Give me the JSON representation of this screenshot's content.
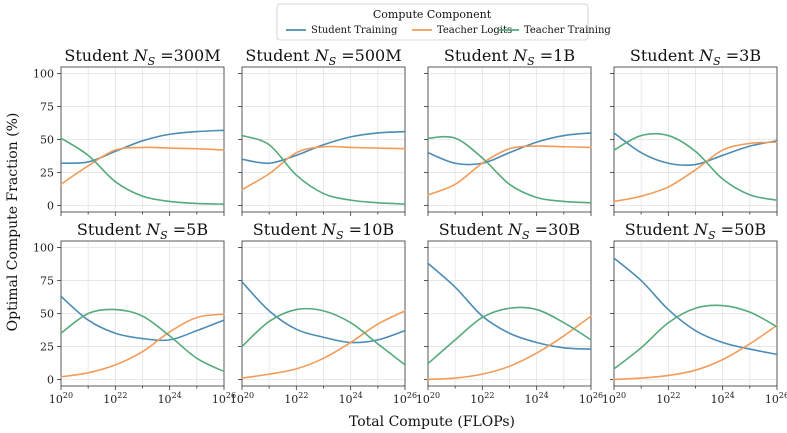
{
  "colors": {
    "student_training": "#4c8cb5",
    "teacher_logits": "#f39c5a",
    "teacher_training": "#55ab7b"
  },
  "chart_data": {
    "type": "line",
    "ylabel": "Optimal Compute Fraction (%)",
    "xlabel": "Total Compute (FLOPs)",
    "xscale": "log",
    "xlim_exponent": [
      20,
      26
    ],
    "ylim": [
      -5,
      105
    ],
    "yticks": [
      0,
      25,
      50,
      75,
      100
    ],
    "xtick_exponents": [
      20,
      22,
      24,
      26
    ],
    "xtick_base": "10",
    "legend": {
      "title": "Compute Component",
      "location": "top-center",
      "entries": [
        "Student Training",
        "Teacher Logits",
        "Teacher Training"
      ]
    },
    "panels": [
      {
        "title_prefix": "Student ",
        "title_var": "N",
        "title_sub": "S",
        "title_suffix": " =300M",
        "x_exponent": [
          20,
          21,
          22,
          23,
          24,
          25,
          26
        ],
        "series": [
          {
            "name": "Student Training",
            "values": [
              32,
              33,
              41,
              49,
              54,
              56,
              57
            ]
          },
          {
            "name": "Teacher Logits",
            "values": [
              16,
              30,
              42,
              44,
              43.5,
              43,
              42
            ]
          },
          {
            "name": "Teacher Training",
            "values": [
              51,
              38,
              18,
              7,
              3,
              1.5,
              1
            ]
          }
        ]
      },
      {
        "title_prefix": "Student ",
        "title_var": "N",
        "title_sub": "S",
        "title_suffix": " =500M",
        "x_exponent": [
          20,
          21,
          22,
          23,
          24,
          25,
          26
        ],
        "series": [
          {
            "name": "Student Training",
            "values": [
              35,
              32,
              38,
              46,
              52,
              55,
              56
            ]
          },
          {
            "name": "Teacher Logits",
            "values": [
              12,
              24,
              40,
              44.5,
              44,
              43.5,
              43
            ]
          },
          {
            "name": "Teacher Training",
            "values": [
              53,
              46,
              23,
              9,
              4,
              2,
              1
            ]
          }
        ]
      },
      {
        "title_prefix": "Student ",
        "title_var": "N",
        "title_sub": "S",
        "title_suffix": " =1B",
        "x_exponent": [
          20,
          21,
          22,
          23,
          24,
          25,
          26
        ],
        "series": [
          {
            "name": "Student Training",
            "values": [
              40,
              32,
              32,
              40,
              48,
              53,
              55
            ]
          },
          {
            "name": "Teacher Logits",
            "values": [
              8,
              16,
              32,
              43,
              45,
              44.5,
              44
            ]
          },
          {
            "name": "Teacher Training",
            "values": [
              51,
              51,
              36,
              16,
              6,
              3,
              2
            ]
          }
        ]
      },
      {
        "title_prefix": "Student ",
        "title_var": "N",
        "title_sub": "S",
        "title_suffix": " =3B",
        "x_exponent": [
          20,
          21,
          22,
          23,
          24,
          25,
          26
        ],
        "series": [
          {
            "name": "Student Training",
            "values": [
              55,
              40,
              32,
              31,
              38,
              45,
              49
            ]
          },
          {
            "name": "Teacher Logits",
            "values": [
              3,
              7,
              14,
              27,
              42,
              47,
              48
            ]
          },
          {
            "name": "Teacher Training",
            "values": [
              42,
              53,
              53,
              41,
              20,
              8,
              4
            ]
          }
        ]
      },
      {
        "title_prefix": "Student ",
        "title_var": "N",
        "title_sub": "S",
        "title_suffix": " =5B",
        "x_exponent": [
          20,
          21,
          22,
          23,
          24,
          25,
          26
        ],
        "series": [
          {
            "name": "Student Training",
            "values": [
              63,
              45,
              35,
              31,
              30,
              37,
              45
            ]
          },
          {
            "name": "Teacher Logits",
            "values": [
              2,
              5,
              11,
              21,
              36,
              47,
              49.5
            ]
          },
          {
            "name": "Teacher Training",
            "values": [
              35,
              50,
              53,
              48,
              33,
              16,
              6
            ]
          }
        ]
      },
      {
        "title_prefix": "Student ",
        "title_var": "N",
        "title_sub": "S",
        "title_suffix": " =10B",
        "x_exponent": [
          20,
          21,
          22,
          23,
          24,
          25,
          26
        ],
        "series": [
          {
            "name": "Student Training",
            "values": [
              74,
              52,
              38,
              32,
              28,
              30,
              37
            ]
          },
          {
            "name": "Teacher Logits",
            "values": [
              1,
              4,
              8,
              16,
              28,
              42,
              52
            ]
          },
          {
            "name": "Teacher Training",
            "values": [
              25,
              44,
              53,
              52,
              43,
              27,
              11
            ]
          }
        ]
      },
      {
        "title_prefix": "Student ",
        "title_var": "N",
        "title_sub": "S",
        "title_suffix": " =30B",
        "x_exponent": [
          20,
          21,
          22,
          23,
          24,
          25,
          26
        ],
        "series": [
          {
            "name": "Student Training",
            "values": [
              88,
              70,
              48,
              35,
              28,
              24,
              23
            ]
          },
          {
            "name": "Teacher Logits",
            "values": [
              0,
              1,
              4,
              10,
              20,
              33,
              48
            ]
          },
          {
            "name": "Teacher Training",
            "values": [
              12,
              30,
              47,
              54,
              53,
              43,
              30
            ]
          }
        ]
      },
      {
        "title_prefix": "Student ",
        "title_var": "N",
        "title_sub": "S",
        "title_suffix": " =50B",
        "x_exponent": [
          20,
          21,
          22,
          23,
          24,
          25,
          26
        ],
        "series": [
          {
            "name": "Student Training",
            "values": [
              92,
              75,
              53,
              37,
              28,
              23,
              19
            ]
          },
          {
            "name": "Teacher Logits",
            "values": [
              0,
              1,
              3,
              7,
              15,
              27,
              41
            ]
          },
          {
            "name": "Teacher Training",
            "values": [
              8,
              24,
              43,
              54,
              56,
              51,
              40
            ]
          }
        ]
      }
    ]
  }
}
